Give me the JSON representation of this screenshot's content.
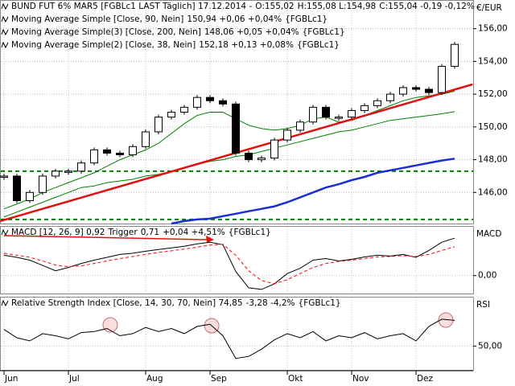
{
  "chart_data": [
    {
      "type": "candlestick",
      "title": "BUND FUT 6% MAR5 [FGBLc1 LAST Täglich] 17.12.2014 -",
      "open_text": "O:155,02",
      "range_text": "H:155,08 L:154,98",
      "change_text": "C:155,04 -0,19 -0,12%",
      "y_label": "€/EUR",
      "values": [
        147.0,
        145.5,
        146.0,
        147.0,
        147.3,
        147.3,
        147.8,
        148.6,
        148.4,
        148.3,
        148.8,
        149.7,
        150.6,
        150.9,
        151.2,
        151.8,
        151.6,
        151.4,
        148.4,
        148.0,
        148.1,
        149.2,
        149.8,
        150.3,
        151.2,
        150.6,
        150.6,
        151.0,
        151.3,
        151.6,
        152.0,
        152.4,
        152.3,
        152.1,
        153.7,
        155.04
      ],
      "up_color": "#ffffff",
      "down_color": "#000000",
      "series": [
        {
          "name": "Moving Average Simple [Close, 90, Nein]",
          "legend_value": "150,94 +0,06 +0,04%",
          "legend_value_color": "#00a000",
          "source": "{FGBLc1}",
          "color": "#008000",
          "values": [
            144.5,
            144.8,
            145.1,
            145.4,
            145.7,
            146.0,
            146.3,
            146.4,
            146.6,
            146.7,
            146.8,
            147.0,
            147.1,
            147.3,
            147.5,
            147.7,
            147.9,
            148.0,
            148.2,
            148.3,
            148.5,
            148.7,
            148.9,
            149.1,
            149.3,
            149.5,
            149.7,
            149.8,
            150.0,
            150.2,
            150.4,
            150.5,
            150.6,
            150.7,
            150.8,
            150.94
          ]
        },
        {
          "name": "Moving Average Simple(3) [Close, 200, Nein]",
          "legend_value": "148,06 +0,05 +0,04%",
          "legend_value_color": "#0000c0",
          "source": "{FGBLc1}",
          "color": "#1a2fd0",
          "width": 2.5,
          "values": [
            null,
            null,
            null,
            null,
            null,
            null,
            null,
            null,
            null,
            null,
            null,
            null,
            null,
            144.1,
            144.25,
            144.35,
            144.4,
            144.55,
            144.7,
            144.85,
            145.0,
            145.15,
            145.4,
            145.7,
            146.0,
            146.3,
            146.5,
            146.75,
            146.95,
            147.2,
            147.35,
            147.5,
            147.65,
            147.8,
            147.95,
            148.06
          ]
        },
        {
          "name": "Moving Average Simple(2) [Close, 38, Nein]",
          "legend_value": "152,18 +0,13 +0,08%",
          "legend_value_color": "#00a000",
          "source": "{FGBLc1}",
          "color": "#008000",
          "values": [
            145.0,
            145.3,
            145.6,
            146.0,
            146.3,
            146.6,
            146.9,
            147.2,
            147.6,
            148.0,
            148.3,
            148.6,
            149.0,
            149.6,
            150.2,
            150.7,
            150.9,
            150.9,
            150.5,
            150.1,
            149.9,
            149.8,
            149.9,
            150.1,
            150.5,
            150.6,
            150.3,
            150.4,
            150.7,
            151.0,
            151.3,
            151.6,
            151.8,
            151.9,
            152.0,
            152.18
          ]
        }
      ],
      "trend_lines": [
        {
          "color": "#e01010",
          "x": [
            -0.3,
            36.4
          ],
          "values": [
            144.25,
            152.6
          ]
        }
      ],
      "hlines": {
        "color": "#008000",
        "values": [
          147.3,
          144.35
        ]
      },
      "ylim": [
        144.1,
        157.75
      ],
      "yticks": [
        {
          "value": 146,
          "label": "146,00"
        },
        {
          "value": 148,
          "label": "148,00"
        },
        {
          "value": 150,
          "label": "150,00"
        },
        {
          "value": 152,
          "label": "152,00"
        },
        {
          "value": 154,
          "label": "154,00"
        },
        {
          "value": 156,
          "label": "156,00"
        }
      ],
      "grid": true
    },
    {
      "type": "line",
      "y_label": "MACD",
      "source": "{FGBLc1}",
      "series": [
        {
          "name": "MACD [12, 26, 9] 0,92",
          "color": "#000000",
          "values": [
            0.5,
            0.45,
            0.38,
            0.25,
            0.12,
            0.2,
            0.3,
            0.38,
            0.45,
            0.52,
            0.55,
            0.6,
            0.64,
            0.68,
            0.72,
            0.78,
            0.82,
            0.76,
            0.1,
            -0.3,
            -0.34,
            -0.2,
            0.05,
            0.18,
            0.38,
            0.42,
            0.36,
            0.4,
            0.46,
            0.5,
            0.48,
            0.52,
            0.45,
            0.62,
            0.82,
            0.92
          ]
        },
        {
          "name": "Trigger",
          "legend_value": "0,71",
          "legend_change": "+0,04 +4,51%",
          "color": "#ff0000",
          "dashed": true,
          "values": [
            0.55,
            0.5,
            0.45,
            0.36,
            0.26,
            0.22,
            0.24,
            0.3,
            0.36,
            0.42,
            0.47,
            0.52,
            0.57,
            0.61,
            0.65,
            0.7,
            0.75,
            0.77,
            0.5,
            0.12,
            -0.12,
            -0.2,
            -0.1,
            0.05,
            0.2,
            0.3,
            0.35,
            0.38,
            0.42,
            0.46,
            0.47,
            0.49,
            0.47,
            0.52,
            0.62,
            0.71
          ]
        }
      ],
      "ylim": [
        -0.44,
        1.22
      ],
      "yticks": [
        {
          "value": 0,
          "label": "0,00"
        }
      ],
      "grid": true
    },
    {
      "type": "line",
      "y_label": "RSI",
      "source": "{FGBLc1}",
      "categories": [
        "Jun",
        null,
        null,
        null,
        null,
        "Jul",
        null,
        null,
        null,
        null,
        null,
        "Aug",
        null,
        null,
        null,
        null,
        "Sep",
        null,
        null,
        null,
        null,
        null,
        "Okt",
        null,
        null,
        null,
        null,
        "Nov",
        null,
        null,
        null,
        null,
        "Dez",
        null,
        null,
        null
      ],
      "series": [
        {
          "name": "Relative Strength Index [Close, 14, 30, 70, Nein] 74,85",
          "legend_value": "-3,28 -4,2%",
          "color": "#000000",
          "values": [
            66,
            58,
            55,
            62,
            60,
            57,
            63,
            64,
            67,
            60,
            62,
            68,
            64,
            67,
            62,
            69,
            71,
            60,
            38,
            40,
            47,
            56,
            62,
            58,
            64,
            55,
            60,
            58,
            63,
            57,
            60,
            62,
            55,
            69,
            76,
            74.85
          ]
        }
      ],
      "ylim": [
        26.9,
        97.7
      ],
      "yticks": [
        {
          "value": 50,
          "label": "50,00"
        }
      ],
      "grid": true
    }
  ]
}
